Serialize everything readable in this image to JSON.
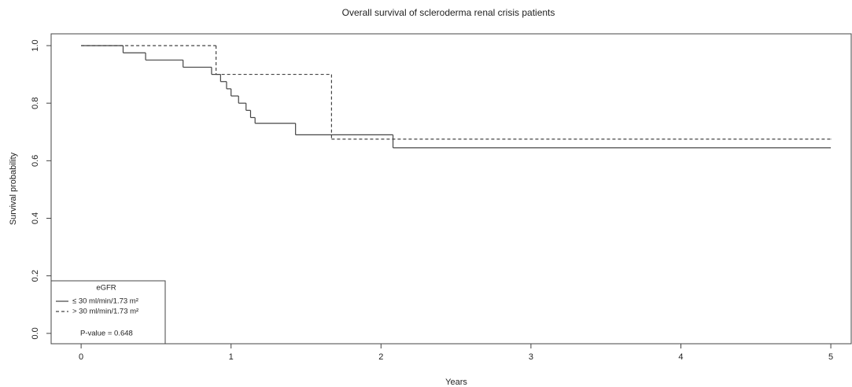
{
  "chart_data": {
    "type": "line",
    "step": "post",
    "title": "Overall survival of scleroderma renal crisis patients",
    "x_label": "Years",
    "y_label": "Survival probability",
    "xlim": [
      -0.2,
      5.136
    ],
    "ylim": [
      -0.036,
      1.041
    ],
    "xticks": [
      0,
      1,
      2,
      3,
      4,
      5
    ],
    "yticks": [
      {
        "value": 0,
        "label": "0.0"
      },
      0.2,
      0.4,
      0.6,
      0.8,
      {
        "value": 1,
        "label": "1.0"
      }
    ],
    "legend": {
      "title": "eGFR",
      "position": "lower left"
    },
    "annotation": "P-value = 0.648",
    "series": [
      {
        "name": "≤ 30  ml/min/1.73 m²",
        "color": "#444444",
        "dash": "solid",
        "x": [
          0,
          0.28,
          0.43,
          0.68,
          0.87,
          0.93,
          0.97,
          1.0,
          1.05,
          1.1,
          1.13,
          1.16,
          1.43,
          2.08,
          5
        ],
        "values": [
          1.0,
          0.975,
          0.95,
          0.925,
          0.9,
          0.875,
          0.85,
          0.825,
          0.8,
          0.775,
          0.75,
          0.73,
          0.69,
          0.645,
          0.645
        ]
      },
      {
        "name": "> 30  ml/min/1.73 m²",
        "color": "#444444",
        "dash": "dashed",
        "x": [
          0,
          0.9,
          1.67,
          5
        ],
        "values": [
          1.0,
          0.9,
          0.675,
          0.675
        ]
      }
    ]
  }
}
